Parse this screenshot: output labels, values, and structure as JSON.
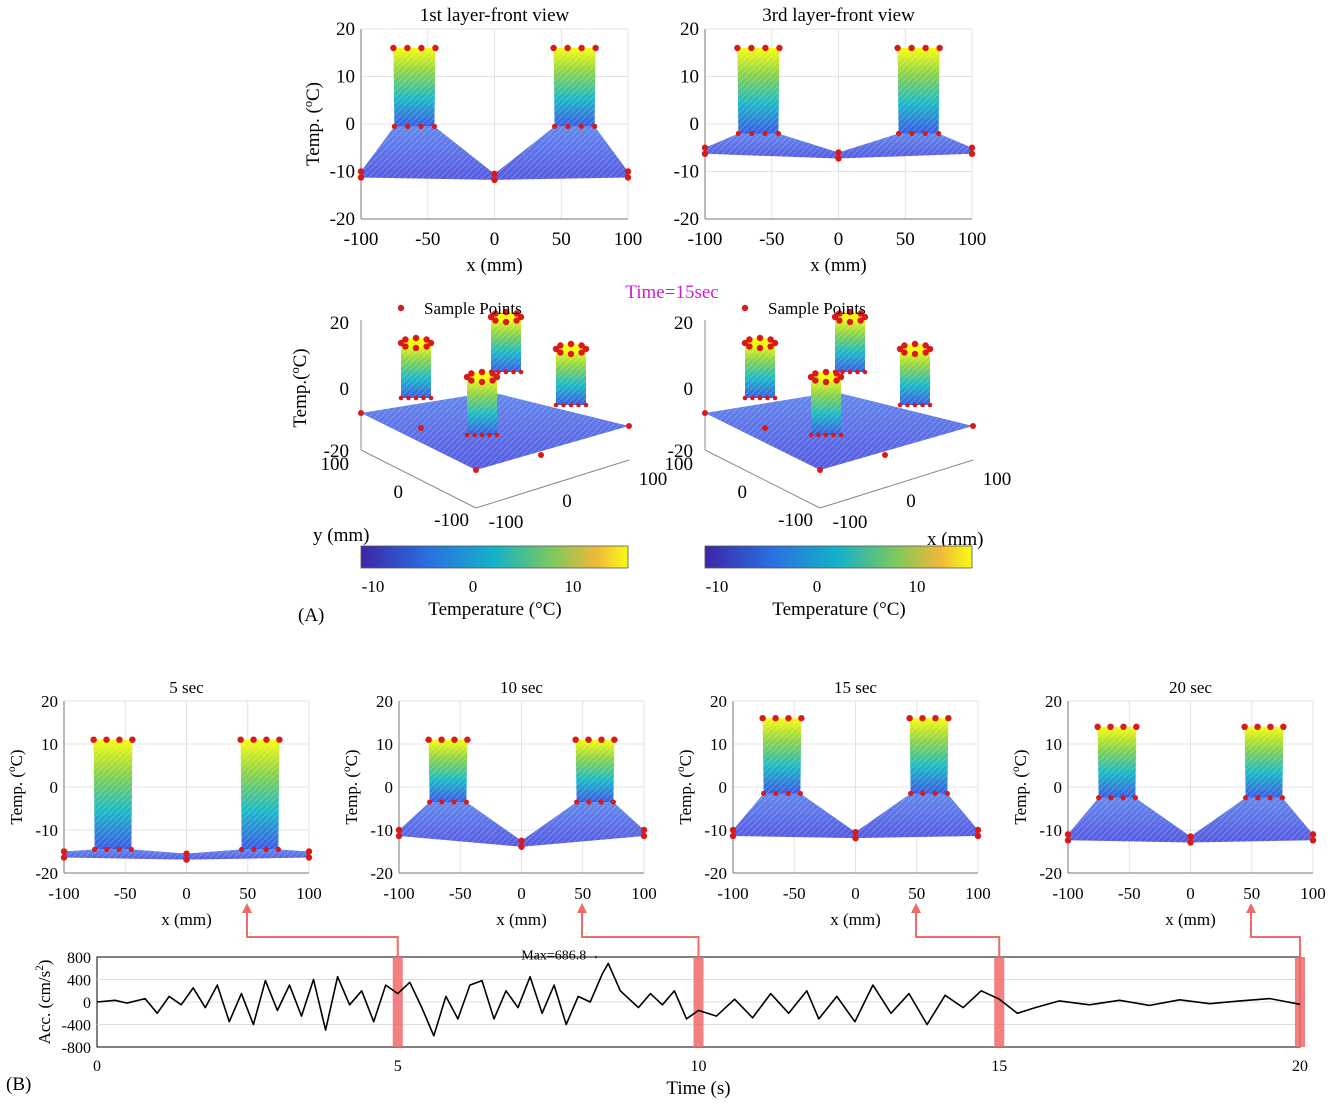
{
  "panel_labels": {
    "a": "(A)",
    "b": "(B)"
  },
  "time_label": "Time=15sec",
  "legend_label": "Sample Points",
  "colors": {
    "low": "#3d26a8",
    "mid": "#1fb7c6",
    "high": "#f9fb15",
    "points": "#d91a1a",
    "highlight": "#f06a6a",
    "time_label": "#d31ad3"
  },
  "front_views": [
    {
      "title": "1st layer-front view",
      "ylabel": "Temp. (oC)",
      "xlabel": "x (mm)",
      "xticks": [
        "-100",
        "-50",
        "0",
        "50",
        "100"
      ],
      "yticks": [
        "20",
        "10",
        "0",
        "-10",
        "-20"
      ]
    },
    {
      "title": "3rd layer-front view",
      "ylabel": "",
      "xlabel": "x (mm)",
      "xticks": [
        "-100",
        "-50",
        "0",
        "50",
        "100"
      ],
      "yticks": [
        "20",
        "10",
        "0",
        "-10",
        "-20"
      ]
    }
  ],
  "iso_views": [
    {
      "ylabel": "Temp.(oC)",
      "zticks": [
        "20",
        "0",
        "-20"
      ],
      "yticks": [
        "100",
        "0",
        "-100"
      ],
      "xticks": [
        "-100",
        "0",
        "100"
      ],
      "axis_label": "y (mm)"
    },
    {
      "zticks": [
        "20",
        "0",
        "-20"
      ],
      "yticks": [
        "100",
        "0",
        "-100"
      ],
      "xticks": [
        "-100",
        "0",
        "100"
      ],
      "axis_label": "x (mm)"
    }
  ],
  "colorbars": [
    {
      "ticks": [
        "-10",
        "0",
        "10"
      ],
      "label": "Temperature (°C)"
    },
    {
      "ticks": [
        "-10",
        "0",
        "10"
      ],
      "label": "Temperature (°C)"
    }
  ],
  "snapshots": [
    {
      "title": "5 sec",
      "ylabel": "Temp. (oC)",
      "xlabel": "x (mm)",
      "xticks": [
        "-100",
        "-50",
        "0",
        "50",
        "100"
      ],
      "yticks": [
        "20",
        "10",
        "0",
        "-10",
        "-20"
      ]
    },
    {
      "title": "10 sec",
      "ylabel": "Temp. (oC)",
      "xlabel": "x (mm)",
      "xticks": [
        "-100",
        "-50",
        "0",
        "50",
        "100"
      ],
      "yticks": [
        "20",
        "10",
        "0",
        "-10",
        "-20"
      ]
    },
    {
      "title": "15 sec",
      "ylabel": "Temp. (oC)",
      "xlabel": "x (mm)",
      "xticks": [
        "-100",
        "-50",
        "0",
        "50",
        "100"
      ],
      "yticks": [
        "20",
        "10",
        "0",
        "-10",
        "-20"
      ]
    },
    {
      "title": "20 sec",
      "ylabel": "Temp. (oC)",
      "xlabel": "x (mm)",
      "xticks": [
        "-100",
        "-50",
        "0",
        "50",
        "100"
      ],
      "yticks": [
        "20",
        "10",
        "0",
        "-10",
        "-20"
      ]
    }
  ],
  "accel": {
    "ylabel": "Acc. (cm/s2)",
    "xlabel": "Time (s)",
    "xticks": [
      "0",
      "5",
      "10",
      "15",
      "20"
    ],
    "yticks": [
      "800",
      "400",
      "0",
      "-400",
      "-800"
    ],
    "annotation": "Max=686.8→"
  },
  "chart_data": [
    {
      "type": "line",
      "title": "",
      "xlabel": "Time (s)",
      "ylabel": "Acc. (cm/s2)",
      "xlim": [
        0,
        20
      ],
      "ylim": [
        -800,
        800
      ],
      "grid": true,
      "highlight_times": [
        5,
        10,
        15,
        20
      ],
      "max_annotation": {
        "x": 8.5,
        "y": 686.8,
        "text": "Max=686.8→"
      },
      "x": [
        0,
        0.3,
        0.5,
        0.8,
        1.0,
        1.2,
        1.4,
        1.6,
        1.8,
        2.0,
        2.2,
        2.4,
        2.6,
        2.8,
        3.0,
        3.2,
        3.4,
        3.6,
        3.8,
        4.0,
        4.2,
        4.4,
        4.6,
        4.8,
        5.0,
        5.2,
        5.4,
        5.6,
        5.8,
        6.0,
        6.2,
        6.4,
        6.6,
        6.8,
        7.0,
        7.2,
        7.4,
        7.6,
        7.8,
        8.0,
        8.2,
        8.4,
        8.5,
        8.7,
        9.0,
        9.2,
        9.4,
        9.6,
        9.8,
        10.0,
        10.3,
        10.6,
        10.9,
        11.2,
        11.5,
        11.8,
        12.0,
        12.3,
        12.6,
        12.9,
        13.2,
        13.5,
        13.8,
        14.1,
        14.4,
        14.7,
        15.0,
        15.3,
        15.6,
        16.0,
        16.5,
        17.0,
        17.5,
        18.0,
        18.5,
        19.0,
        19.5,
        20.0
      ],
      "y": [
        0,
        30,
        -20,
        60,
        -200,
        100,
        -50,
        250,
        -100,
        300,
        -350,
        150,
        -400,
        380,
        -150,
        300,
        -250,
        400,
        -500,
        450,
        -50,
        200,
        -350,
        300,
        150,
        350,
        -100,
        -600,
        100,
        -300,
        300,
        380,
        -300,
        200,
        -100,
        450,
        -200,
        300,
        -400,
        100,
        0,
        500,
        686.8,
        200,
        -100,
        150,
        -50,
        200,
        -300,
        -150,
        -250,
        50,
        -280,
        150,
        -200,
        200,
        -300,
        100,
        -350,
        300,
        -200,
        150,
        -400,
        120,
        -100,
        200,
        50,
        -200,
        -100,
        20,
        -50,
        30,
        -60,
        40,
        -30,
        20,
        60,
        -40
      ]
    }
  ]
}
